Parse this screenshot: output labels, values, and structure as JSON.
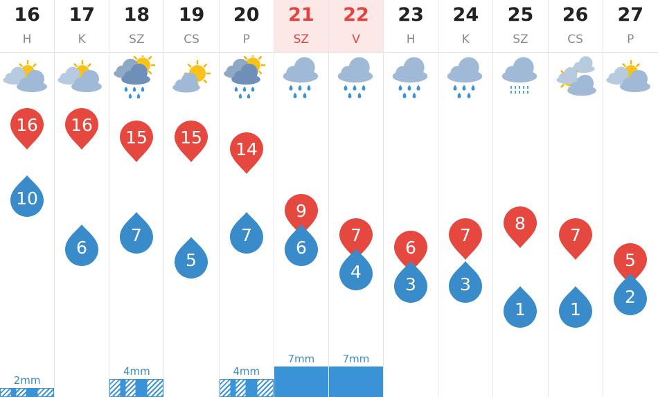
{
  "colors": {
    "max_marker": "#e5483f",
    "min_marker": "#3a8bc9",
    "weekend_text": "#e0463f",
    "weekend_header_bg": "#fde8e8",
    "precip_bar": "#3a93d6"
  },
  "days": [
    {
      "num": "16",
      "name": "H",
      "icon": "partly-sunny-icon",
      "max": 16,
      "min": 10,
      "precip": "2mm",
      "precip_amount": 2,
      "precip_style": "hatched",
      "weekend": false
    },
    {
      "num": "17",
      "name": "K",
      "icon": "partly-sunny-icon",
      "max": 16,
      "min": 6,
      "precip": "",
      "precip_amount": 0,
      "precip_style": "none",
      "weekend": false
    },
    {
      "num": "18",
      "name": "SZ",
      "icon": "sun-rain-cloud-icon",
      "max": 15,
      "min": 7,
      "precip": "4mm",
      "precip_amount": 4,
      "precip_style": "hatched",
      "weekend": false
    },
    {
      "num": "19",
      "name": "CS",
      "icon": "sunny-cloud-icon",
      "max": 15,
      "min": 5,
      "precip": "",
      "precip_amount": 0,
      "precip_style": "none",
      "weekend": false
    },
    {
      "num": "20",
      "name": "P",
      "icon": "sun-rain-cloud-icon",
      "max": 14,
      "min": 7,
      "precip": "4mm",
      "precip_amount": 4,
      "precip_style": "hatched",
      "weekend": false
    },
    {
      "num": "21",
      "name": "SZ",
      "icon": "rain-cloud-icon",
      "max": 9,
      "min": 6,
      "precip": "7mm",
      "precip_amount": 7,
      "precip_style": "solid",
      "weekend": true
    },
    {
      "num": "22",
      "name": "V",
      "icon": "rain-cloud-icon",
      "max": 7,
      "min": 4,
      "precip": "7mm",
      "precip_amount": 7,
      "precip_style": "solid",
      "weekend": true
    },
    {
      "num": "23",
      "name": "H",
      "icon": "rain-cloud-icon",
      "max": 6,
      "min": 3,
      "precip": "",
      "precip_amount": 0,
      "precip_style": "none",
      "weekend": false
    },
    {
      "num": "24",
      "name": "K",
      "icon": "rain-cloud-icon",
      "max": 7,
      "min": 3,
      "precip": "",
      "precip_amount": 0,
      "precip_style": "none",
      "weekend": false
    },
    {
      "num": "25",
      "name": "SZ",
      "icon": "drizzle-cloud-icon",
      "max": 8,
      "min": 1,
      "precip": "",
      "precip_amount": 0,
      "precip_style": "none",
      "weekend": false
    },
    {
      "num": "26",
      "name": "CS",
      "icon": "clouds-sun-icon",
      "max": 7,
      "min": 1,
      "precip": "",
      "precip_amount": 0,
      "precip_style": "none",
      "weekend": false
    },
    {
      "num": "27",
      "name": "P",
      "icon": "partly-sunny-icon",
      "max": 5,
      "min": 2,
      "precip": "",
      "precip_amount": 0,
      "precip_style": "none",
      "weekend": false
    }
  ]
}
